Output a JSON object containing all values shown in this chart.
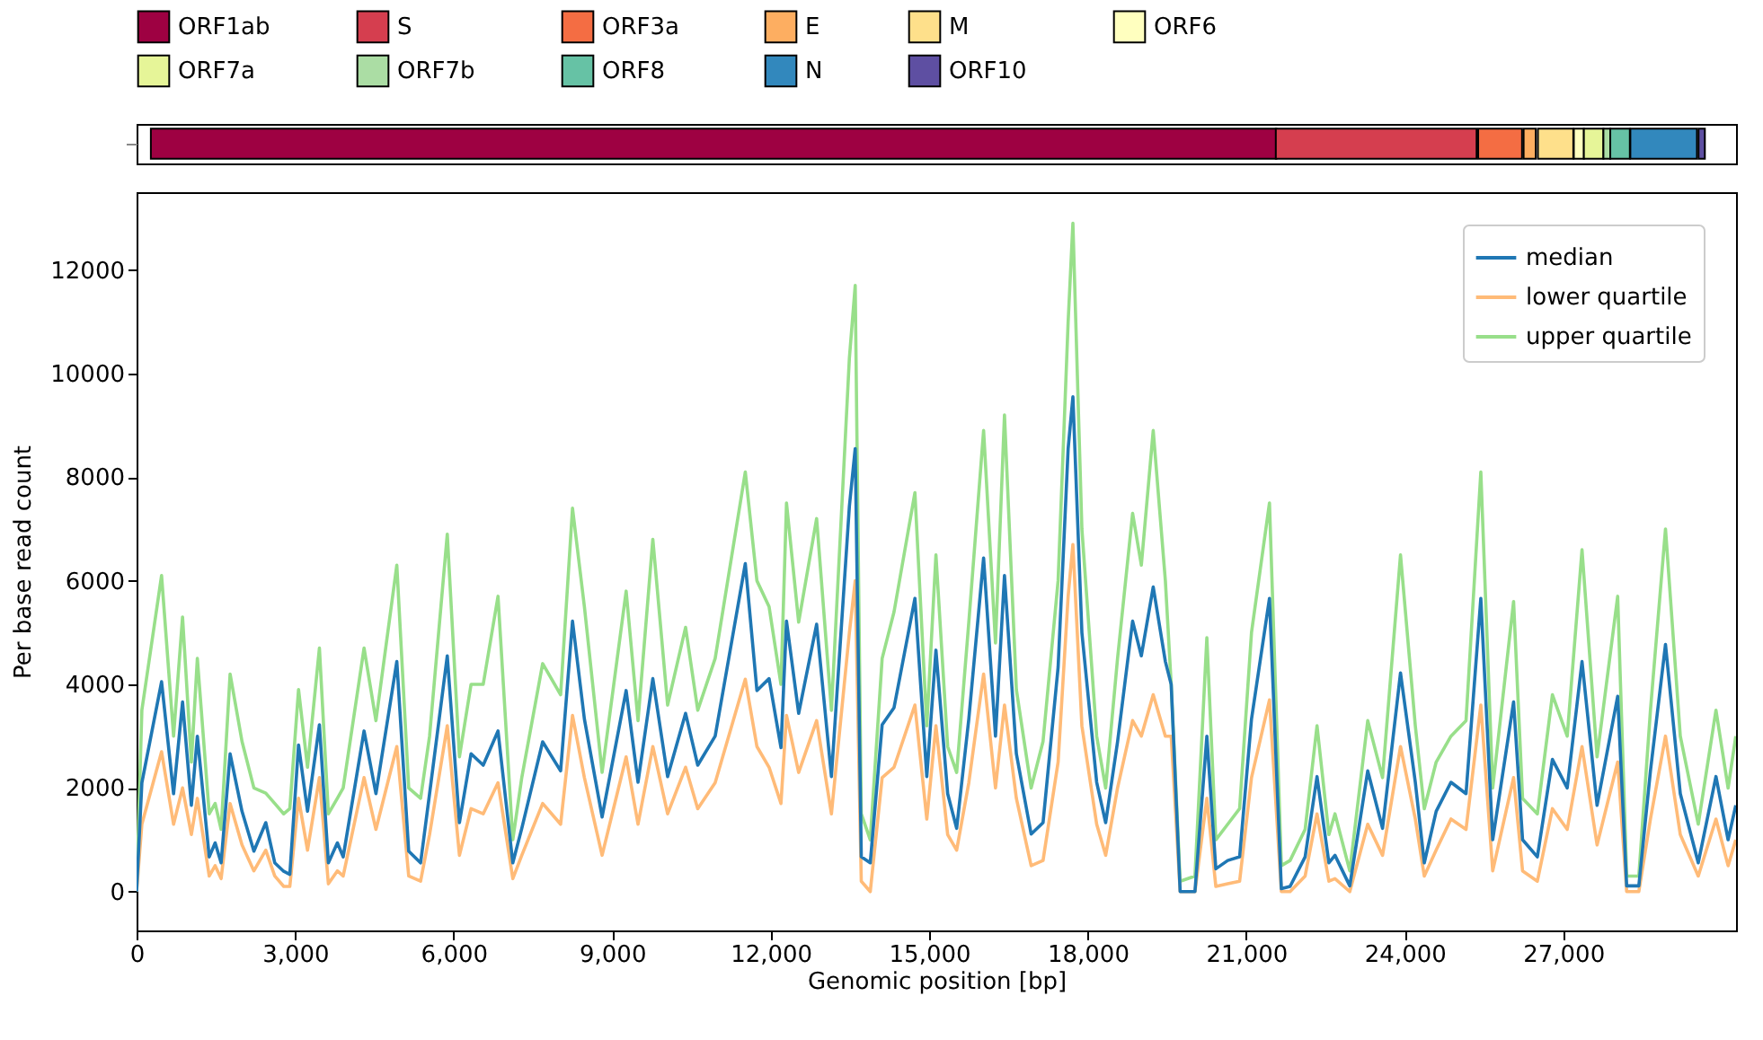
{
  "chart_data": [
    {
      "type": "bar",
      "orientation": "horizontal",
      "categories": [
        null
      ],
      "xlim": [
        0,
        30270
      ],
      "tick_labels": false,
      "legend": "top",
      "grid": false,
      "series": [
        {
          "name": "ORF1ab",
          "color": "#9e0142",
          "base": [
            270
          ],
          "values": [
            21300
          ]
        },
        {
          "name": "S",
          "color": "#d53e4f",
          "base": [
            21560
          ],
          "values": [
            3800
          ]
        },
        {
          "name": "ORF3a",
          "color": "#f46d43",
          "base": [
            25390
          ],
          "values": [
            830
          ]
        },
        {
          "name": "E",
          "color": "#fdae61",
          "base": [
            26250
          ],
          "values": [
            230
          ]
        },
        {
          "name": "M",
          "color": "#fee08b",
          "base": [
            26520
          ],
          "values": [
            670
          ]
        },
        {
          "name": "ORF6",
          "color": "#ffffbf",
          "base": [
            27200
          ],
          "values": [
            190
          ]
        },
        {
          "name": "ORF7a",
          "color": "#e6f598",
          "base": [
            27390
          ],
          "values": [
            370
          ]
        },
        {
          "name": "ORF7b",
          "color": "#abdda4",
          "base": [
            27760
          ],
          "values": [
            130
          ]
        },
        {
          "name": "ORF8",
          "color": "#66c2a5",
          "base": [
            27890
          ],
          "values": [
            370
          ]
        },
        {
          "name": "N",
          "color": "#3288bd",
          "base": [
            28270
          ],
          "values": [
            1260
          ]
        },
        {
          "name": "ORF10",
          "color": "#5e4fa2",
          "base": [
            29560
          ],
          "values": [
            120
          ]
        }
      ]
    },
    {
      "type": "line",
      "xlabel": "Genomic position [bp]",
      "ylabel": "Per base read count",
      "xlim": [
        0,
        30270
      ],
      "ylim": [
        -750,
        13500
      ],
      "xticks": [
        0,
        {
          "value": 3000,
          "label": "3,000"
        },
        {
          "value": 6000,
          "label": "6,000"
        },
        {
          "value": 9000,
          "label": "9,000"
        },
        {
          "value": 12000,
          "label": "12,000"
        },
        {
          "value": 15000,
          "label": "15,000"
        },
        {
          "value": 18000,
          "label": "18,000"
        },
        {
          "value": 21000,
          "label": "21,000"
        },
        {
          "value": 24000,
          "label": "24,000"
        },
        {
          "value": 27000,
          "label": "27,000"
        }
      ],
      "yticks": [
        0,
        2000,
        4000,
        6000,
        8000,
        10000,
        12000
      ],
      "grid": false,
      "legend": "top right",
      "marker": "none",
      "line_style": "solid",
      "x": [
        0,
        100,
        473,
        700,
        870,
        1037,
        1150,
        1375,
        1487,
        1600,
        1770,
        1995,
        2220,
        2445,
        2615,
        2785,
        2900,
        3065,
        3235,
        3460,
        3630,
        3800,
        3910,
        4305,
        4530,
        4925,
        5150,
        5375,
        5545,
        5880,
        6110,
        6330,
        6560,
        6840,
        7120,
        7290,
        7685,
        8025,
        8250,
        8475,
        8810,
        9265,
        9490,
        9770,
        10050,
        10390,
        10620,
        10950,
        11520,
        11740,
        11970,
        12195,
        12300,
        12530,
        12870,
        13150,
        13490,
        13600,
        13715,
        13885,
        14110,
        14335,
        14730,
        14955,
        15128,
        15350,
        15520,
        15750,
        16030,
        16255,
        16425,
        16650,
        16930,
        17155,
        17440,
        17630,
        17720,
        17890,
        18170,
        18340,
        18565,
        18850,
        19015,
        19240,
        19470,
        19580,
        19750,
        20030,
        20255,
        20425,
        20650,
        20875,
        21100,
        21440,
        21665,
        21830,
        22115,
        22340,
        22565,
        22680,
        22960,
        23300,
        23580,
        23920,
        24200,
        24370,
        24595,
        24875,
        25160,
        25440,
        25665,
        26060,
        26230,
        26510,
        26795,
        27075,
        27355,
        27640,
        28030,
        28200,
        28430,
        28650,
        28935,
        29215,
        29555,
        29890,
        30120,
        30265
      ],
      "series": [
        {
          "name": "median",
          "color": "#1f77b4",
          "values": [
            0,
            2100,
            4050,
            1890,
            3660,
            1665,
            3000,
            670,
            940,
            555,
            2660,
            1550,
            780,
            1330,
            555,
            390,
            333,
            2830,
            1550,
            3220,
            555,
            940,
            670,
            3100,
            1890,
            4440,
            780,
            555,
            1890,
            4550,
            1330,
            2660,
            2440,
            3100,
            555,
            1220,
            2890,
            2330,
            5220,
            3330,
            1440,
            3880,
            2110,
            4110,
            2220,
            3440,
            2440,
            3000,
            6330,
            3880,
            4110,
            2780,
            5220,
            3440,
            5160,
            2220,
            7440,
            8550,
            670,
            555,
            3220,
            3550,
            5660,
            2220,
            4660,
            1890,
            1220,
            3330,
            6440,
            3000,
            6100,
            2660,
            1110,
            1330,
            4330,
            8550,
            9550,
            5000,
            2110,
            1330,
            2890,
            5220,
            4550,
            5880,
            4440,
            4000,
            0,
            0,
            3000,
            440,
            600,
            670,
            3330,
            5660,
            55,
            100,
            670,
            2220,
            555,
            700,
            110,
            2330,
            1220,
            4220,
            2110,
            555,
            1550,
            2110,
            1890,
            5660,
            1000,
            3660,
            1000,
            670,
            2550,
            2000,
            4440,
            1665,
            3770,
            110,
            110,
            2330,
            4770,
            1890,
            555,
            2220,
            1000,
            1665
          ]
        },
        {
          "name": "lower quartile",
          "color": "#ffbb78",
          "values": [
            0,
            1300,
            2700,
            1300,
            2000,
            1100,
            1800,
            300,
            500,
            250,
            1700,
            900,
            400,
            800,
            300,
            100,
            100,
            1800,
            800,
            2200,
            150,
            400,
            300,
            2200,
            1200,
            2800,
            300,
            200,
            1100,
            3200,
            700,
            1600,
            1500,
            2100,
            250,
            700,
            1700,
            1300,
            3400,
            2200,
            700,
            2600,
            1300,
            2800,
            1500,
            2400,
            1600,
            2100,
            4100,
            2800,
            2400,
            1700,
            3400,
            2300,
            3300,
            1500,
            5000,
            6000,
            200,
            0,
            2200,
            2400,
            3600,
            1400,
            3200,
            1100,
            800,
            2100,
            4200,
            2000,
            3600,
            1800,
            500,
            600,
            2500,
            5700,
            6700,
            3200,
            1300,
            700,
            2000,
            3300,
            3000,
            3800,
            3000,
            3000,
            0,
            0,
            1800,
            100,
            150,
            200,
            2200,
            3700,
            0,
            0,
            300,
            1500,
            200,
            250,
            0,
            1300,
            700,
            2800,
            1400,
            300,
            800,
            1400,
            1200,
            3600,
            400,
            2200,
            400,
            200,
            1600,
            1200,
            2800,
            900,
            2500,
            0,
            0,
            1400,
            3000,
            1100,
            300,
            1400,
            500,
            1000
          ]
        },
        {
          "name": "upper quartile",
          "color": "#98df8a",
          "values": [
            0,
            3500,
            6100,
            3000,
            5300,
            2500,
            4500,
            1500,
            1700,
            1200,
            4200,
            2900,
            2000,
            1900,
            1700,
            1500,
            1600,
            3900,
            2400,
            4700,
            1500,
            1800,
            2000,
            4700,
            3300,
            6300,
            2000,
            1800,
            3000,
            6900,
            2600,
            4000,
            4000,
            5700,
            1000,
            2200,
            4400,
            3800,
            7400,
            5500,
            2300,
            5800,
            3300,
            6800,
            3600,
            5100,
            3500,
            4500,
            8100,
            6000,
            5500,
            4000,
            7500,
            5200,
            7200,
            3500,
            10300,
            11700,
            1500,
            1000,
            4500,
            5400,
            7700,
            3200,
            6500,
            2800,
            2300,
            5200,
            8900,
            4800,
            9200,
            3900,
            2000,
            2900,
            6000,
            11000,
            12900,
            7000,
            3000,
            2000,
            4500,
            7300,
            6300,
            8900,
            6000,
            4000,
            200,
            300,
            4900,
            1000,
            1300,
            1600,
            5000,
            7500,
            500,
            600,
            1200,
            3200,
            1100,
            1500,
            400,
            3300,
            2200,
            6500,
            3200,
            1600,
            2500,
            3000,
            3300,
            8100,
            2000,
            5600,
            1800,
            1500,
            3800,
            3000,
            6600,
            2600,
            5700,
            300,
            300,
            3500,
            7000,
            3000,
            1300,
            3500,
            2000,
            3000
          ]
        }
      ]
    }
  ]
}
